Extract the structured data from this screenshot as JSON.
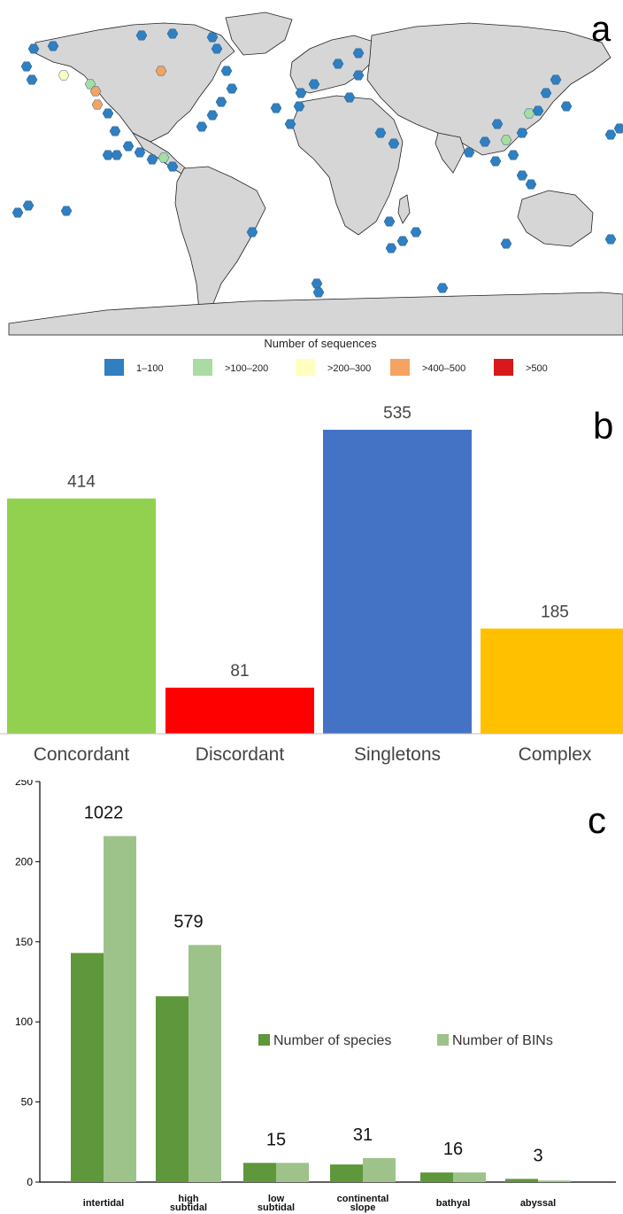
{
  "panels": {
    "a": {
      "letter": "a"
    },
    "b": {
      "letter": "b"
    },
    "c": {
      "letter": "c"
    }
  },
  "map_legend": {
    "title": "Number of sequences",
    "items": [
      {
        "label": "1–100",
        "color": "#2f7fc1"
      },
      {
        "label": ">100–200",
        "color": "#a8dca0"
      },
      {
        "label": ">200–300",
        "color": "#ffffc0"
      },
      {
        "label": ">400–500",
        "color": "#f4a460"
      },
      {
        "label": ">500",
        "color": "#d7191c"
      }
    ]
  },
  "chart_data": [
    {
      "type": "bar",
      "categories": [
        "Concordant",
        "Discordant",
        "Singletons",
        "Complex"
      ],
      "values": [
        414,
        81,
        535,
        185
      ],
      "colors": [
        "#92d050",
        "#ff0000",
        "#4472c4",
        "#ffc000"
      ],
      "ylim": [
        0,
        535
      ],
      "axes_visible": false
    },
    {
      "type": "bar",
      "categories": [
        "intertidal",
        "high subtidal",
        "low subtidal",
        "continental slope",
        "bathyal",
        "abyssal"
      ],
      "series": [
        {
          "name": "Number of species",
          "values": [
            143,
            116,
            12,
            11,
            6,
            2
          ],
          "color": "#5f973c"
        },
        {
          "name": "Number of BINs",
          "values": [
            216,
            148,
            12,
            15,
            6,
            1
          ],
          "color": "#9dc38a"
        }
      ],
      "group_labels": [
        "1022",
        "579",
        "15",
        "31",
        "16",
        "3"
      ],
      "ylim": [
        0,
        250
      ],
      "yticks": [
        0,
        50,
        100,
        150,
        200,
        250
      ],
      "legend_position": "right-center"
    }
  ]
}
